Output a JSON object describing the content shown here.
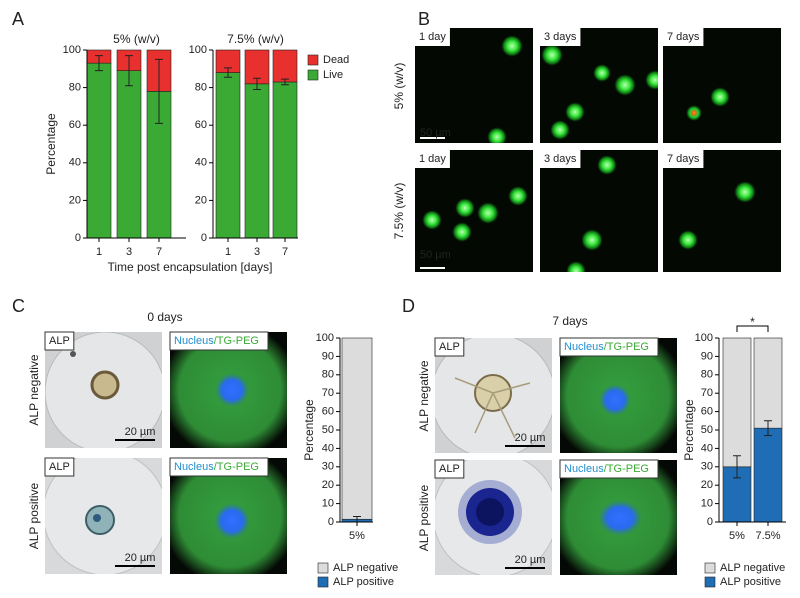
{
  "panels": [
    "A",
    "B",
    "C",
    "D"
  ],
  "panel_b": {
    "col_labels": [
      "1 day",
      "3 days",
      "7 days"
    ],
    "row_labels": [
      "5% (w/v)",
      "7.5% (w/v)"
    ],
    "scale_bar": "50 µm"
  },
  "panel_c": {
    "title": "0 days",
    "row_labels": [
      "ALP negative",
      "ALP positive"
    ],
    "stain_label": "ALP",
    "nucleus_label": "Nucleus",
    "gel_label": "/TG-PEG",
    "scale_bar": "20 µm"
  },
  "panel_d": {
    "title": "7 days",
    "row_labels": [
      "ALP negative",
      "ALP positive"
    ],
    "stain_label": "ALP",
    "nucleus_label": "Nucleus",
    "gel_label": "/TG-PEG",
    "scale_bar": "20 µm"
  },
  "chart_data": [
    {
      "type": "stacked_bar",
      "title": "5% (w/v)",
      "ylabel": "Percentage",
      "xlabel": "Time post encapsulation [days]",
      "categories": [
        "1",
        "3",
        "7"
      ],
      "series": [
        {
          "color": "#3aaa35",
          "values": [
            93,
            89,
            78
          ],
          "errors": [
            4,
            8,
            17
          ]
        },
        {
          "color": "#e8312f",
          "values": [
            7,
            11,
            22
          ]
        }
      ],
      "ylim": [
        0,
        100
      ],
      "yticks": [
        0,
        20,
        40,
        60,
        80,
        100
      ]
    },
    {
      "type": "stacked_bar",
      "title": "7.5% (w/v)",
      "legend": "right",
      "categories": [
        "1",
        "3",
        "7"
      ],
      "series": [
        {
          "name": "Live",
          "color": "#3aaa35",
          "values": [
            88,
            82,
            83
          ],
          "errors": [
            2.5,
            3,
            1.5
          ]
        },
        {
          "name": "Dead",
          "color": "#e8312f",
          "values": [
            12,
            18,
            17
          ]
        }
      ],
      "ylim": [
        0,
        100
      ],
      "yticks": [
        0,
        20,
        40,
        60,
        80,
        100
      ]
    },
    {
      "type": "stacked_bar",
      "ylabel": "Percentage",
      "legend": "bottom",
      "categories": [
        "5%"
      ],
      "series": [
        {
          "name": "ALP positive",
          "color": "#1f6db5",
          "values": [
            1.5
          ],
          "errors": [
            1.5
          ]
        },
        {
          "name": "ALP negative",
          "color": "#dcdcdc",
          "values": [
            98.5
          ]
        }
      ],
      "ylim": [
        0,
        100
      ],
      "yticks": [
        0,
        10,
        20,
        30,
        40,
        50,
        60,
        70,
        80,
        90,
        100
      ]
    },
    {
      "type": "stacked_bar",
      "ylabel": "Percentage",
      "legend": "bottom",
      "annotation": "*",
      "categories": [
        "5%",
        "7.5%"
      ],
      "series": [
        {
          "name": "ALP positive",
          "color": "#1f6db5",
          "values": [
            30,
            51
          ],
          "errors": [
            6,
            4
          ]
        },
        {
          "name": "ALP negative",
          "color": "#dcdcdc",
          "values": [
            70,
            49
          ]
        }
      ],
      "ylim": [
        0,
        100
      ],
      "yticks": [
        0,
        10,
        20,
        30,
        40,
        50,
        60,
        70,
        80,
        90,
        100
      ]
    }
  ]
}
